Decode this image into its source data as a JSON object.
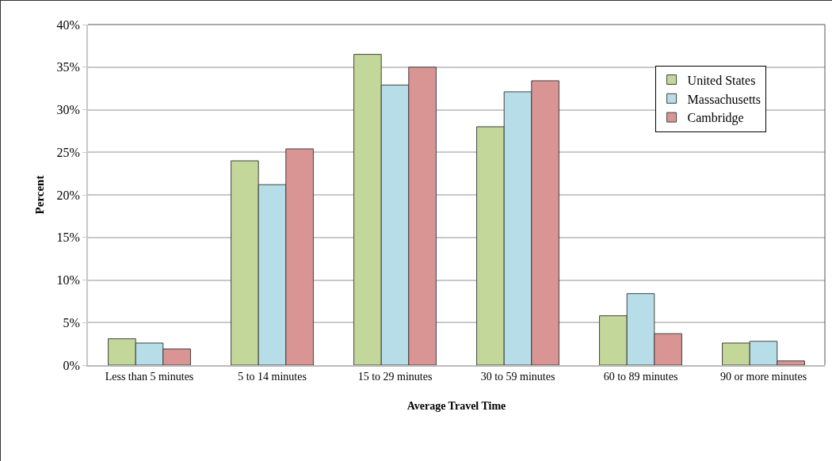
{
  "chart_data": {
    "type": "bar",
    "xlabel": "Average Travel Time",
    "ylabel": "Percent",
    "categories": [
      "Less than 5 minutes",
      "5 to 14 minutes",
      "15 to 29 minutes",
      "30 to 59 minutes",
      "60 to 89 minutes",
      "90 or more minutes"
    ],
    "series": [
      {
        "name": "United States",
        "color": "#c4d79b",
        "values": [
          3.1,
          24.0,
          36.5,
          28.0,
          5.8,
          2.6
        ]
      },
      {
        "name": "Massachusetts",
        "color": "#b7dde8",
        "values": [
          2.6,
          21.2,
          32.9,
          32.1,
          8.4,
          2.8
        ]
      },
      {
        "name": "Cambridge",
        "color": "#d99594",
        "values": [
          1.9,
          25.4,
          35.0,
          33.4,
          3.7,
          0.5
        ]
      }
    ],
    "ylim": [
      0,
      40
    ],
    "yticks": [
      {
        "value": 0,
        "label": "0%"
      },
      {
        "value": 5,
        "label": "5%"
      },
      {
        "value": 10,
        "label": "10%"
      },
      {
        "value": 15,
        "label": "15%"
      },
      {
        "value": 20,
        "label": "20%"
      },
      {
        "value": 25,
        "label": "25%"
      },
      {
        "value": 30,
        "label": "30%"
      },
      {
        "value": 35,
        "label": "35%"
      },
      {
        "value": 40,
        "label": "40%"
      }
    ],
    "grid": "y",
    "legend": "top right"
  }
}
